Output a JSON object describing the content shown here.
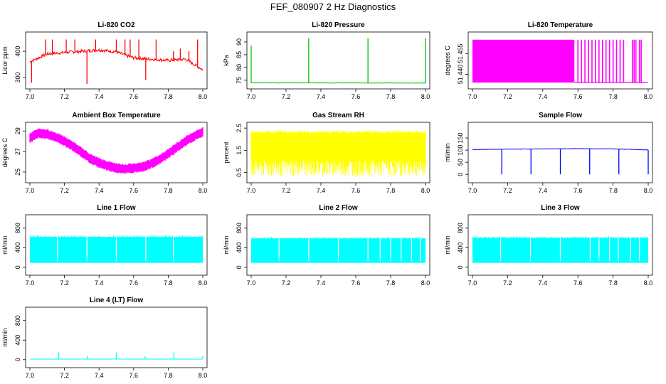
{
  "figure": {
    "title": "FEF_080907  2 Hz Diagnostics"
  },
  "chart_data": [
    {
      "id": "li820-co2",
      "type": "line",
      "title": "Li-820 CO2",
      "ylabel": "Licor ppm",
      "color": "#ff0000",
      "xlim": [
        7.0,
        8.0
      ],
      "ylim": [
        270,
        460
      ],
      "xticks": [
        "7.0",
        "7.2",
        "7.4",
        "7.6",
        "7.8",
        "8.0"
      ],
      "yticks": [
        "300",
        "400"
      ],
      "series": [
        {
          "name": "CO2",
          "x": [
            7.0,
            7.05,
            7.1,
            7.2,
            7.3,
            7.4,
            7.5,
            7.55,
            7.6,
            7.7,
            7.8,
            7.9,
            8.0
          ],
          "y": [
            360,
            375,
            390,
            395,
            400,
            405,
            398,
            385,
            375,
            370,
            365,
            370,
            330
          ]
        }
      ],
      "spikes": [
        [
          7.01,
          280
        ],
        [
          7.09,
          445
        ],
        [
          7.13,
          445
        ],
        [
          7.21,
          445
        ],
        [
          7.26,
          445
        ],
        [
          7.33,
          275
        ],
        [
          7.38,
          445
        ],
        [
          7.5,
          445
        ],
        [
          7.55,
          445
        ],
        [
          7.58,
          445
        ],
        [
          7.63,
          445
        ],
        [
          7.67,
          290
        ],
        [
          7.73,
          445
        ],
        [
          7.83,
          400
        ],
        [
          7.87,
          410
        ],
        [
          7.92,
          400
        ],
        [
          7.97,
          445
        ]
      ]
    },
    {
      "id": "li820-pressure",
      "type": "line",
      "title": "Li-820 Pressure",
      "ylabel": "kPa",
      "color": "#00c000",
      "xlim": [
        7.0,
        8.0
      ],
      "ylim": [
        73,
        92.5
      ],
      "xticks": [
        "7.0",
        "7.2",
        "7.4",
        "7.6",
        "7.8",
        "8.0"
      ],
      "yticks": [
        "75",
        "80",
        "85",
        "90"
      ],
      "series": [
        {
          "name": "Pressure",
          "x": [
            7.0,
            8.0
          ],
          "y": [
            74.0,
            73.9
          ]
        }
      ],
      "spikes": [
        [
          7.0,
          88.5
        ],
        [
          7.33,
          91.5
        ],
        [
          7.67,
          91.5
        ],
        [
          8.0,
          91.5
        ]
      ]
    },
    {
      "id": "li820-temperature",
      "type": "band",
      "title": "Li-820 Temperature",
      "ylabel": "degrees C",
      "color": "#ff00ff",
      "xlim": [
        7.0,
        8.0
      ],
      "ylim": [
        51.432,
        51.468
      ],
      "xticks": [
        "7.0",
        "7.2",
        "7.4",
        "7.6",
        "7.8",
        "8.0"
      ],
      "yticks": [
        "51.440",
        "51.455"
      ],
      "series": [
        {
          "name": "Temperature",
          "lower": 51.434,
          "upper": 51.465,
          "solid_until": 7.58
        }
      ],
      "bars": [
        7.6,
        7.62,
        7.64,
        7.66,
        7.68,
        7.7,
        7.72,
        7.74,
        7.76,
        7.78,
        7.8,
        7.82,
        7.84,
        7.86,
        7.91,
        7.92,
        7.93,
        7.95,
        7.96
      ]
    },
    {
      "id": "ambient-box-temperature",
      "type": "band",
      "title": "Ambient Box Temperature",
      "ylabel": "degrees C",
      "color": "#ff00ff",
      "xlim": [
        7.0,
        8.0
      ],
      "ylim": [
        24.3,
        29.5
      ],
      "xticks": [
        "7.0",
        "7.2",
        "7.4",
        "7.6",
        "7.8",
        "8.0"
      ],
      "yticks": [
        "25",
        "27",
        "29"
      ],
      "series": [
        {
          "name": "Temperature",
          "x": [
            7.0,
            7.05,
            7.1,
            7.15,
            7.2,
            7.25,
            7.3,
            7.35,
            7.4,
            7.45,
            7.5,
            7.55,
            7.6,
            7.65,
            7.7,
            7.75,
            7.8,
            7.85,
            7.9,
            7.95,
            8.0
          ],
          "y": [
            28.3,
            28.8,
            28.7,
            28.4,
            28.0,
            27.5,
            26.9,
            26.3,
            25.9,
            25.6,
            25.4,
            25.3,
            25.4,
            25.5,
            25.8,
            26.2,
            26.8,
            27.4,
            28.0,
            28.5,
            28.9
          ],
          "spread": 0.7
        }
      ]
    },
    {
      "id": "gas-stream-rh",
      "type": "band",
      "title": "Gas Stream RH",
      "ylabel": "percent",
      "color": "#ffff00",
      "xlim": [
        7.0,
        8.0
      ],
      "ylim": [
        0.2,
        2.6
      ],
      "xticks": [
        "7.0",
        "7.2",
        "7.4",
        "7.6",
        "7.8",
        "8.0"
      ],
      "yticks": [
        "0.5",
        "1.5",
        "2.5"
      ],
      "series": [
        {
          "name": "RH",
          "lower": 0.3,
          "upper": 2.4,
          "dense_lower": 1.0
        }
      ]
    },
    {
      "id": "sample-flow",
      "type": "line",
      "title": "Sample Flow",
      "ylabel": "ml/min",
      "color": "#0000ff",
      "xlim": [
        7.0,
        8.0
      ],
      "ylim": [
        -20,
        200
      ],
      "xticks": [
        "7.0",
        "7.2",
        "7.4",
        "7.6",
        "7.8",
        "8.0"
      ],
      "yticks": [
        "0",
        "50",
        "100",
        "150"
      ],
      "series": [
        {
          "name": "Flow",
          "x": [
            7.0,
            7.2,
            7.4,
            7.6,
            7.8,
            8.0
          ],
          "y": [
            102,
            104,
            105,
            106,
            105,
            101
          ]
        }
      ],
      "spikes": [
        [
          7.167,
          0
        ],
        [
          7.333,
          0
        ],
        [
          7.5,
          0
        ],
        [
          7.667,
          0
        ],
        [
          7.833,
          0
        ],
        [
          8.0,
          0
        ]
      ]
    },
    {
      "id": "line1-flow",
      "type": "band",
      "title": "Line 1 Flow",
      "ylabel": "ml/min",
      "color": "#00ffff",
      "xlim": [
        7.0,
        8.0
      ],
      "ylim": [
        -90,
        1000
      ],
      "xticks": [
        "7.0",
        "7.2",
        "7.4",
        "7.6",
        "7.8",
        "8.0"
      ],
      "yticks": [
        "0",
        "400",
        "800"
      ],
      "series": [
        {
          "name": "Flow",
          "lower": 90,
          "upper": 620
        }
      ],
      "gaps": [
        7.16,
        7.33,
        7.5,
        7.67,
        7.83
      ]
    },
    {
      "id": "line2-flow",
      "type": "band",
      "title": "Line 2 Flow",
      "ylabel": "ml/min",
      "color": "#00ffff",
      "xlim": [
        7.0,
        8.0
      ],
      "ylim": [
        -90,
        1000
      ],
      "xticks": [
        "7.0",
        "7.2",
        "7.4",
        "7.6",
        "7.8",
        "8.0"
      ],
      "yticks": [
        "0",
        "400",
        "800"
      ],
      "series": [
        {
          "name": "Flow",
          "lower": 90,
          "upper": 590
        }
      ],
      "gaps": [
        7.16,
        7.33,
        7.5,
        7.67,
        7.74,
        7.8,
        7.86,
        7.92,
        7.97
      ]
    },
    {
      "id": "line3-flow",
      "type": "band",
      "title": "Line 3 Flow",
      "ylabel": "ml/min",
      "color": "#00ffff",
      "xlim": [
        7.0,
        8.0
      ],
      "ylim": [
        -90,
        1000
      ],
      "xticks": [
        "7.0",
        "7.2",
        "7.4",
        "7.6",
        "7.8",
        "8.0"
      ],
      "yticks": [
        "0",
        "400",
        "800"
      ],
      "series": [
        {
          "name": "Flow",
          "lower": 90,
          "upper": 600
        }
      ],
      "gaps": [
        7.16,
        7.33,
        7.5,
        7.67,
        7.72,
        7.78,
        7.83,
        7.9,
        7.95
      ]
    },
    {
      "id": "line4-lt-flow",
      "type": "line",
      "title": "Line 4 (LT) Flow",
      "ylabel": "ml/min",
      "color": "#00ffff",
      "xlim": [
        7.0,
        8.0
      ],
      "ylim": [
        -90,
        1000
      ],
      "xticks": [
        "7.0",
        "7.2",
        "7.4",
        "7.6",
        "7.8",
        "8.0"
      ],
      "yticks": [
        "0",
        "400",
        "800"
      ],
      "series": [
        {
          "name": "Flow",
          "x": [
            7.0,
            8.0
          ],
          "y": [
            12,
            12
          ]
        }
      ],
      "spikes": [
        [
          7.167,
          150
        ],
        [
          7.333,
          80
        ],
        [
          7.5,
          150
        ],
        [
          7.667,
          70
        ],
        [
          7.833,
          150
        ],
        [
          8.0,
          80
        ]
      ]
    }
  ]
}
